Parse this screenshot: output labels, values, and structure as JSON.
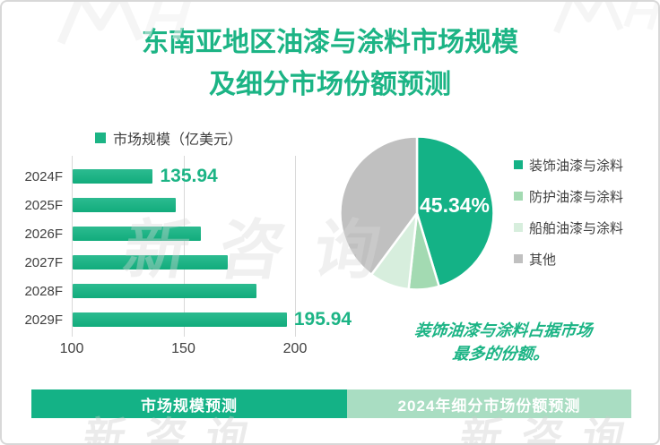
{
  "title": {
    "line1": "东南亚地区油漆与涂料市场规模",
    "line2": "及细分市场份额预测"
  },
  "chart_data": [
    {
      "type": "bar",
      "orientation": "horizontal",
      "legend": "市场规模（亿美元）",
      "categories": [
        "2024F",
        "2025F",
        "2026F",
        "2027F",
        "2028F",
        "2029F"
      ],
      "values": [
        135.94,
        146.26,
        157.36,
        169.3,
        182.15,
        195.94
      ],
      "value_labels": [
        "135.94",
        "",
        "",
        "",
        "",
        "195.94"
      ],
      "xlim": [
        100,
        212
      ],
      "x_ticks": [
        100,
        150,
        200
      ],
      "grid": true,
      "bar_color": "#1CB485"
    },
    {
      "type": "pie",
      "labels": [
        "装饰油漆与涂料",
        "防护油漆与涂料",
        "船舶油漆与涂料",
        "其他"
      ],
      "values": [
        45.34,
        6.4,
        8.4,
        39.86
      ],
      "colors": [
        "#14B286",
        "#A3DAB2",
        "#D7EEDD",
        "#C0C0C0"
      ],
      "slice_label": "45.34%",
      "start_angle": "top",
      "direction": "clockwise",
      "legend_position": "right"
    }
  ],
  "annotation": {
    "line1": "装饰油漆与涂料占据市场",
    "line2": "最多的份额。"
  },
  "footer": {
    "left": "市场规模预测",
    "right": "2024年细分市场份额预测"
  },
  "watermark": {
    "text": "新咨询"
  },
  "colors": {
    "primary_green": "#1CB485",
    "pie_green": "#14B286",
    "pie_mid_green": "#A3DAB2",
    "pie_light_green": "#D7EEDD",
    "pie_gray": "#C0C0C0",
    "footer_left_bg": "#14B286",
    "footer_right_bg": "#A9DDC2",
    "text_dark": "#3F3F3F",
    "gridline": "#D9D9D9"
  }
}
